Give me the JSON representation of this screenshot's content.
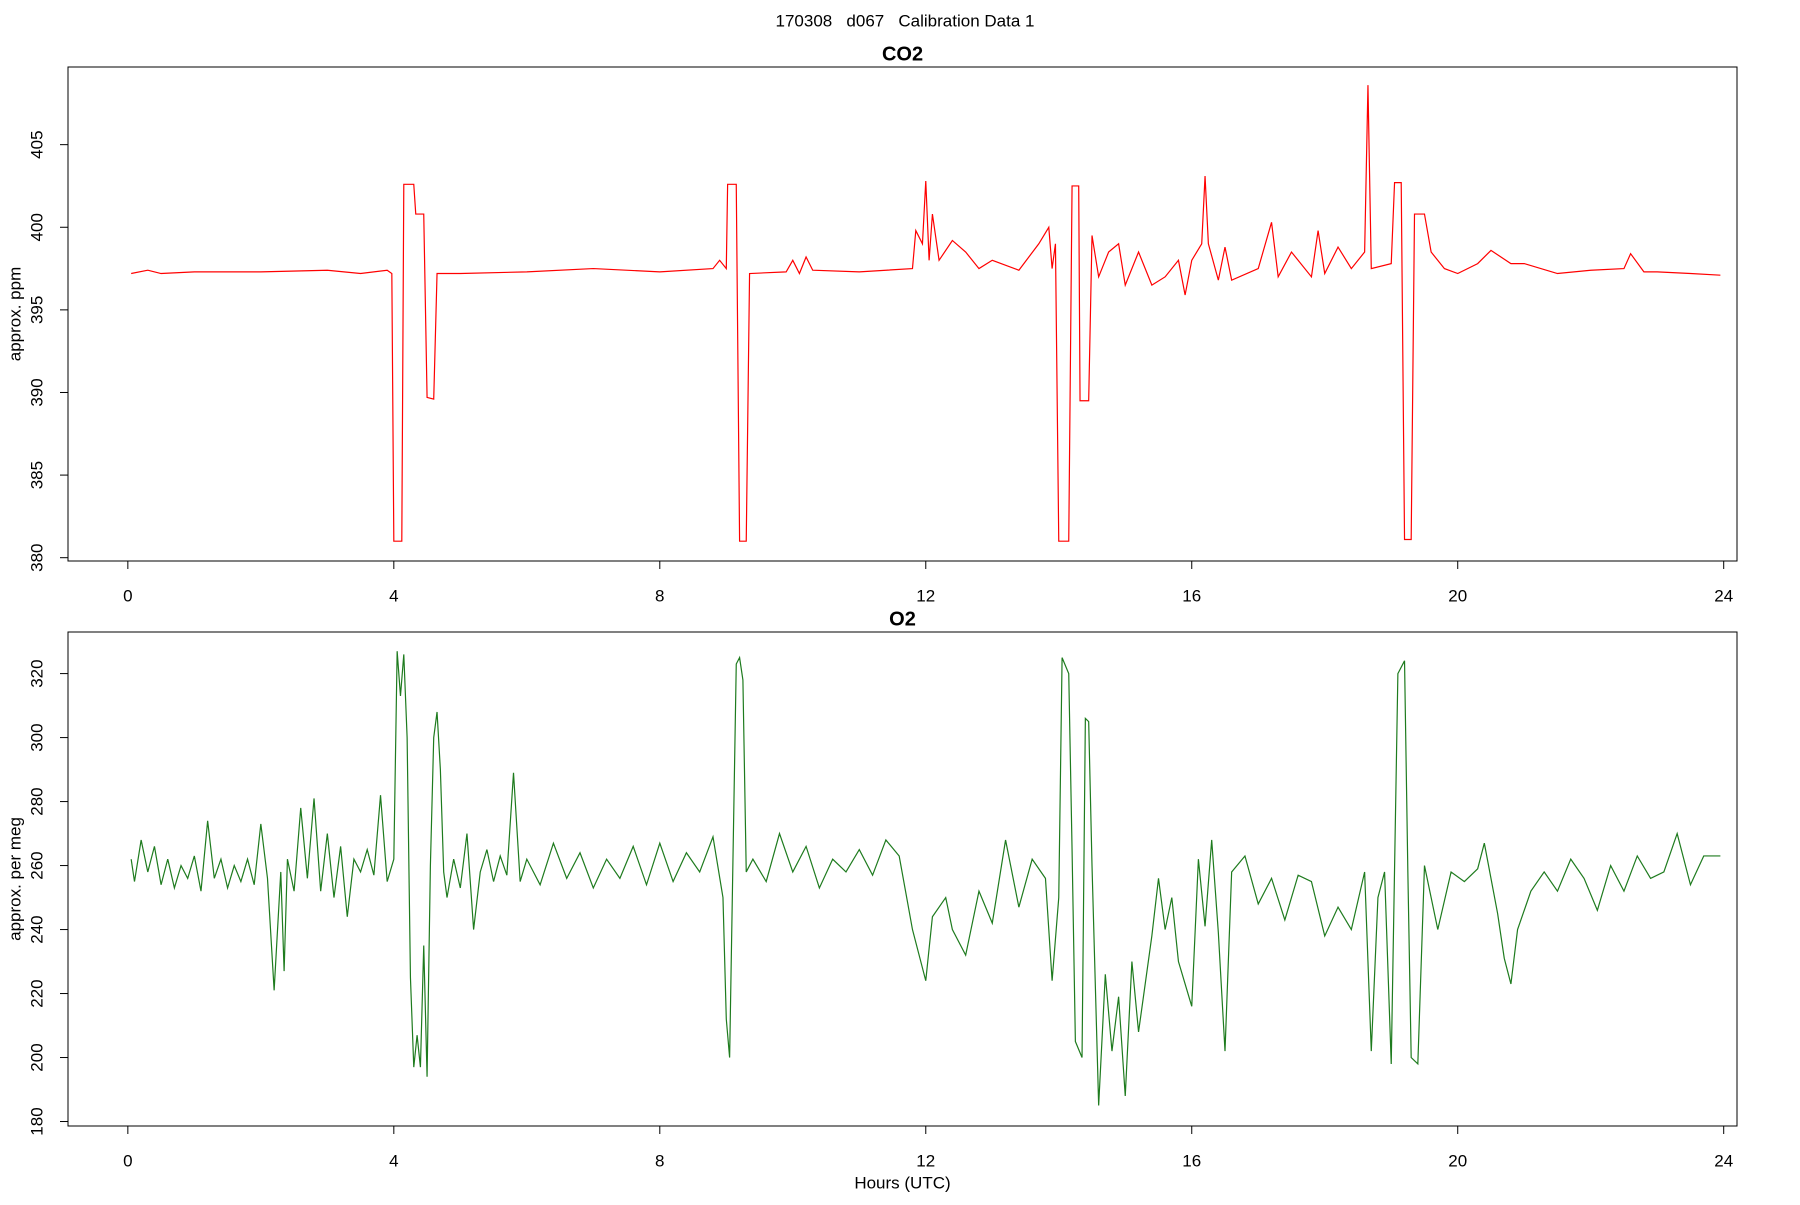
{
  "title": "170308   d067   Calibration Data 1",
  "chart_data": [
    {
      "type": "line",
      "title": "CO2",
      "ylabel": "approx. ppm",
      "color": "#ff0000",
      "xlim": [
        -0.9,
        24.2
      ],
      "xticks": [
        0,
        4,
        8,
        12,
        16,
        20,
        24
      ],
      "ylim": [
        379.8,
        409.7
      ],
      "yticks": [
        380,
        385,
        390,
        395,
        400,
        405
      ],
      "x": [
        0.05,
        0.3,
        0.5,
        1,
        2,
        3,
        3.5,
        3.9,
        3.97,
        4.0,
        4.12,
        4.15,
        4.3,
        4.33,
        4.45,
        4.5,
        4.6,
        4.65,
        5,
        6,
        7,
        8,
        8.8,
        8.9,
        9.0,
        9.02,
        9.15,
        9.2,
        9.3,
        9.35,
        9.9,
        10,
        10.1,
        10.2,
        10.3,
        11,
        11.8,
        11.85,
        11.95,
        12.0,
        12.05,
        12.1,
        12.2,
        12.4,
        12.6,
        12.8,
        13,
        13.4,
        13.7,
        13.85,
        13.9,
        13.95,
        14.0,
        14.15,
        14.2,
        14.3,
        14.32,
        14.45,
        14.5,
        14.6,
        14.75,
        14.9,
        15.0,
        15.2,
        15.4,
        15.6,
        15.8,
        15.9,
        16.0,
        16.15,
        16.2,
        16.25,
        16.4,
        16.5,
        16.6,
        17,
        17.2,
        17.3,
        17.5,
        17.8,
        17.9,
        18,
        18.2,
        18.4,
        18.6,
        18.65,
        18.7,
        19.0,
        19.05,
        19.15,
        19.2,
        19.3,
        19.35,
        19.5,
        19.6,
        19.8,
        20,
        20.3,
        20.5,
        20.8,
        21,
        21.5,
        22,
        22.5,
        22.6,
        22.8,
        23,
        23.5,
        23.95
      ],
      "values": [
        397.2,
        397.4,
        397.2,
        397.3,
        397.3,
        397.4,
        397.2,
        397.4,
        397.2,
        381,
        381,
        402.6,
        402.6,
        400.8,
        400.8,
        389.7,
        389.6,
        397.2,
        397.2,
        397.3,
        397.5,
        397.3,
        397.5,
        398,
        397.5,
        402.6,
        402.6,
        381,
        381,
        397.2,
        397.3,
        398,
        397.2,
        398.2,
        397.4,
        397.3,
        397.5,
        399.8,
        399,
        402.8,
        398,
        400.8,
        398,
        399.2,
        398.5,
        397.5,
        398,
        397.4,
        399,
        400,
        397.5,
        399,
        381,
        381,
        402.5,
        402.5,
        389.5,
        389.5,
        399.5,
        397,
        398.5,
        399,
        396.5,
        398.5,
        396.5,
        397,
        398,
        395.9,
        398,
        399,
        403.1,
        399,
        396.8,
        398.8,
        396.8,
        397.5,
        400.3,
        397,
        398.5,
        397,
        399.8,
        397.2,
        398.8,
        397.5,
        398.5,
        408.6,
        397.5,
        397.8,
        402.7,
        402.7,
        381.1,
        381.1,
        400.8,
        400.8,
        398.5,
        397.5,
        397.2,
        397.8,
        398.6,
        397.8,
        397.8,
        397.2,
        397.4,
        397.5,
        398.4,
        397.3,
        397.3,
        397.2,
        397.1
      ]
    },
    {
      "type": "line",
      "title": "O2",
      "ylabel": "approx. per meg",
      "xlabel": "Hours (UTC)",
      "color": "#1e7b1e",
      "xlim": [
        -0.9,
        24.2
      ],
      "xticks": [
        0,
        4,
        8,
        12,
        16,
        20,
        24
      ],
      "ylim": [
        178.6,
        333
      ],
      "yticks": [
        180,
        200,
        220,
        240,
        260,
        280,
        300,
        320
      ],
      "x": [
        0.05,
        0.1,
        0.2,
        0.3,
        0.4,
        0.5,
        0.6,
        0.7,
        0.8,
        0.9,
        1.0,
        1.1,
        1.2,
        1.3,
        1.4,
        1.5,
        1.6,
        1.7,
        1.8,
        1.9,
        2.0,
        2.1,
        2.2,
        2.3,
        2.35,
        2.4,
        2.5,
        2.6,
        2.7,
        2.8,
        2.9,
        3.0,
        3.1,
        3.2,
        3.3,
        3.4,
        3.5,
        3.6,
        3.7,
        3.8,
        3.9,
        4.0,
        4.05,
        4.1,
        4.15,
        4.2,
        4.25,
        4.3,
        4.35,
        4.4,
        4.45,
        4.5,
        4.55,
        4.6,
        4.65,
        4.7,
        4.75,
        4.8,
        4.9,
        5.0,
        5.1,
        5.2,
        5.3,
        5.4,
        5.5,
        5.6,
        5.7,
        5.8,
        5.9,
        6.0,
        6.2,
        6.4,
        6.6,
        6.8,
        7.0,
        7.2,
        7.4,
        7.6,
        7.8,
        8.0,
        8.2,
        8.4,
        8.6,
        8.8,
        8.95,
        9.0,
        9.05,
        9.15,
        9.2,
        9.25,
        9.3,
        9.4,
        9.6,
        9.8,
        10,
        10.2,
        10.4,
        10.6,
        10.8,
        11,
        11.2,
        11.4,
        11.6,
        11.8,
        12.0,
        12.1,
        12.3,
        12.4,
        12.6,
        12.8,
        13,
        13.2,
        13.4,
        13.6,
        13.8,
        13.9,
        14.0,
        14.05,
        14.15,
        14.2,
        14.25,
        14.35,
        14.4,
        14.45,
        14.5,
        14.6,
        14.7,
        14.8,
        14.9,
        15.0,
        15.1,
        15.2,
        15.4,
        15.5,
        15.6,
        15.7,
        15.8,
        15.9,
        16.0,
        16.1,
        16.2,
        16.3,
        16.4,
        16.5,
        16.6,
        16.8,
        17,
        17.2,
        17.4,
        17.6,
        17.8,
        18,
        18.2,
        18.4,
        18.6,
        18.7,
        18.8,
        18.9,
        19.0,
        19.1,
        19.2,
        19.25,
        19.3,
        19.4,
        19.5,
        19.7,
        19.9,
        20.1,
        20.3,
        20.4,
        20.6,
        20.7,
        20.8,
        20.9,
        21.1,
        21.3,
        21.5,
        21.7,
        21.9,
        22.1,
        22.3,
        22.5,
        22.7,
        22.9,
        23.1,
        23.3,
        23.5,
        23.7,
        23.95
      ],
      "values": [
        262,
        255,
        268,
        258,
        266,
        254,
        262,
        253,
        260,
        256,
        263,
        252,
        274,
        256,
        262,
        253,
        260,
        255,
        262,
        254,
        273,
        256,
        221,
        258,
        227,
        262,
        252,
        278,
        256,
        281,
        252,
        270,
        250,
        266,
        244,
        262,
        258,
        265,
        257,
        282,
        255,
        262,
        327,
        313,
        326,
        300,
        225,
        197,
        207,
        197,
        235,
        194,
        260,
        300,
        308,
        290,
        258,
        250,
        262,
        253,
        270,
        240,
        258,
        265,
        255,
        263,
        257,
        289,
        255,
        262,
        254,
        267,
        256,
        264,
        253,
        262,
        256,
        266,
        254,
        267,
        255,
        264,
        258,
        269,
        250,
        212,
        200,
        323,
        325,
        318,
        258,
        262,
        255,
        270,
        258,
        266,
        253,
        262,
        258,
        265,
        257,
        268,
        263,
        240,
        224,
        244,
        250,
        240,
        232,
        252,
        242,
        268,
        247,
        262,
        256,
        224,
        250,
        325,
        320,
        265,
        205,
        200,
        306,
        305,
        260,
        185,
        226,
        202,
        219,
        188,
        230,
        208,
        238,
        256,
        240,
        250,
        230,
        223,
        216,
        262,
        241,
        268,
        239,
        202,
        258,
        263,
        248,
        256,
        243,
        257,
        255,
        238,
        247,
        240,
        258,
        202,
        250,
        258,
        198,
        320,
        324,
        258,
        200,
        198,
        260,
        240,
        258,
        255,
        259,
        267,
        245,
        231,
        223,
        240,
        252,
        258,
        252,
        262,
        256,
        246,
        260,
        252,
        263,
        256,
        258,
        270,
        254,
        263,
        263
      ]
    }
  ]
}
